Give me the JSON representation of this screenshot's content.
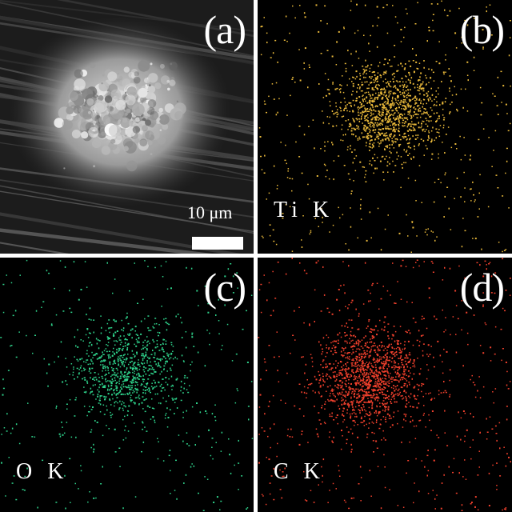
{
  "figure": {
    "panels": [
      {
        "letter": "(a)",
        "kind": "SEM micrograph",
        "scale_bar": "10 μm"
      },
      {
        "letter": "(b)",
        "kind": "EDS map",
        "element": "Ti K",
        "dot_color": "#e8b83a"
      },
      {
        "letter": "(c)",
        "kind": "EDS map",
        "element": "O K",
        "dot_color": "#2ed18a"
      },
      {
        "letter": "(d)",
        "kind": "EDS map",
        "element": "C K",
        "dot_color": "#f0402c"
      }
    ],
    "colors": {
      "background": "#000000",
      "divider": "#ffffff",
      "label": "#ffffff"
    }
  }
}
